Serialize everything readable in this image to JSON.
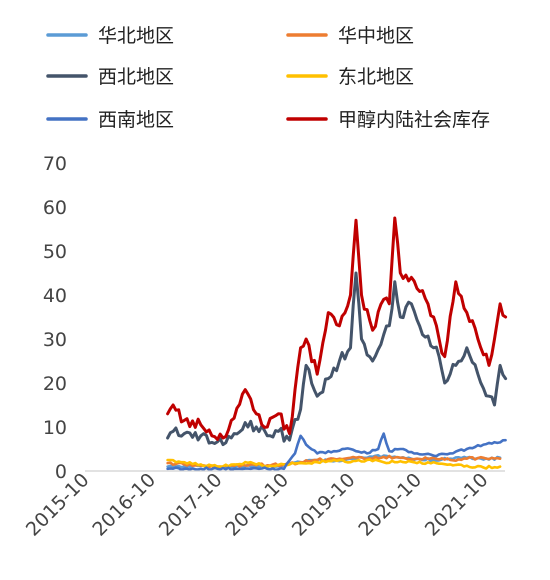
{
  "chart_data": {
    "type": "line",
    "x_ticks": [
      "2015-10",
      "2016-10",
      "2017-10",
      "2018-10",
      "2019-10",
      "2020-10",
      "2021-10"
    ],
    "y_ticks": [
      "0",
      "10",
      "20",
      "30",
      "40",
      "50",
      "60",
      "70"
    ],
    "ylim": [
      0,
      70
    ],
    "grid": false,
    "legend_position": "top",
    "series": [
      {
        "name": "华北地区",
        "color": "#5b9bd5",
        "points": [
          [
            "2016-12",
            1.0
          ],
          [
            "2017-03",
            1.0
          ],
          [
            "2017-06",
            1.2
          ],
          [
            "2017-09",
            0.8
          ],
          [
            "2017-12",
            1.0
          ],
          [
            "2018-03",
            1.1
          ],
          [
            "2018-06",
            1.0
          ],
          [
            "2018-09",
            1.3
          ],
          [
            "2018-12",
            2.0
          ],
          [
            "2019-03",
            2.5
          ],
          [
            "2019-06",
            2.2
          ],
          [
            "2019-09",
            2.8
          ],
          [
            "2019-12",
            3.0
          ],
          [
            "2020-03",
            3.5
          ],
          [
            "2020-06",
            3.0
          ],
          [
            "2020-09",
            2.8
          ],
          [
            "2020-12",
            2.5
          ],
          [
            "2021-03",
            2.8
          ],
          [
            "2021-06",
            3.0
          ],
          [
            "2021-09",
            2.6
          ],
          [
            "2021-12",
            3.0
          ]
        ]
      },
      {
        "name": "华中地区",
        "color": "#ed7d31",
        "points": [
          [
            "2016-12",
            1.8
          ],
          [
            "2017-03",
            1.5
          ],
          [
            "2017-06",
            1.2
          ],
          [
            "2017-09",
            1.0
          ],
          [
            "2017-12",
            1.2
          ],
          [
            "2018-03",
            1.5
          ],
          [
            "2018-06",
            1.3
          ],
          [
            "2018-09",
            1.5
          ],
          [
            "2018-12",
            2.0
          ],
          [
            "2019-03",
            2.5
          ],
          [
            "2019-06",
            2.8
          ],
          [
            "2019-09",
            3.0
          ],
          [
            "2019-12",
            2.8
          ],
          [
            "2020-03",
            3.2
          ],
          [
            "2020-06",
            3.0
          ],
          [
            "2020-09",
            2.8
          ],
          [
            "2020-12",
            3.0
          ],
          [
            "2021-03",
            2.5
          ],
          [
            "2021-06",
            2.8
          ],
          [
            "2021-09",
            3.0
          ],
          [
            "2021-12",
            2.8
          ]
        ]
      },
      {
        "name": "西北地区",
        "color": "#44546a",
        "points": [
          [
            "2016-12",
            7.5
          ],
          [
            "2017-01",
            9.0
          ],
          [
            "2017-03",
            8.5
          ],
          [
            "2017-06",
            8.0
          ],
          [
            "2017-08",
            6.5
          ],
          [
            "2017-10",
            6.0
          ],
          [
            "2017-12",
            8.5
          ],
          [
            "2018-02",
            11.0
          ],
          [
            "2018-04",
            10.0
          ],
          [
            "2018-06",
            8.0
          ],
          [
            "2018-08",
            9.0
          ],
          [
            "2018-10",
            7.0
          ],
          [
            "2018-12",
            14.0
          ],
          [
            "2019-01",
            24.0
          ],
          [
            "2019-03",
            17.0
          ],
          [
            "2019-05",
            21.0
          ],
          [
            "2019-07",
            25.0
          ],
          [
            "2019-09",
            28.0
          ],
          [
            "2019-10",
            45.0
          ],
          [
            "2019-11",
            30.0
          ],
          [
            "2020-01",
            25.0
          ],
          [
            "2020-03",
            31.0
          ],
          [
            "2020-04",
            33.0
          ],
          [
            "2020-05",
            43.0
          ],
          [
            "2020-06",
            35.0
          ],
          [
            "2020-08",
            38.0
          ],
          [
            "2020-10",
            31.0
          ],
          [
            "2020-12",
            28.0
          ],
          [
            "2021-01",
            26.0
          ],
          [
            "2021-02",
            20.0
          ],
          [
            "2021-04",
            24.0
          ],
          [
            "2021-06",
            28.0
          ],
          [
            "2021-08",
            22.0
          ],
          [
            "2021-10",
            17.0
          ],
          [
            "2021-11",
            15.0
          ],
          [
            "2021-12",
            24.0
          ],
          [
            "2022-01",
            21.0
          ]
        ]
      },
      {
        "name": "东北地区",
        "color": "#ffc000",
        "points": [
          [
            "2016-12",
            2.5
          ],
          [
            "2017-03",
            2.0
          ],
          [
            "2017-06",
            1.5
          ],
          [
            "2017-09",
            1.0
          ],
          [
            "2017-12",
            1.5
          ],
          [
            "2018-03",
            2.0
          ],
          [
            "2018-06",
            1.0
          ],
          [
            "2018-09",
            1.5
          ],
          [
            "2018-12",
            1.8
          ],
          [
            "2019-03",
            2.0
          ],
          [
            "2019-06",
            2.5
          ],
          [
            "2019-09",
            2.0
          ],
          [
            "2019-12",
            2.5
          ],
          [
            "2020-03",
            2.0
          ],
          [
            "2020-06",
            2.2
          ],
          [
            "2020-09",
            1.8
          ],
          [
            "2020-12",
            2.0
          ],
          [
            "2021-03",
            1.5
          ],
          [
            "2021-06",
            1.2
          ],
          [
            "2021-09",
            0.8
          ],
          [
            "2021-12",
            1.0
          ]
        ]
      },
      {
        "name": "西南地区",
        "color": "#4472c4",
        "points": [
          [
            "2016-12",
            0.5
          ],
          [
            "2017-03",
            0.5
          ],
          [
            "2017-06",
            0.5
          ],
          [
            "2017-09",
            0.5
          ],
          [
            "2017-12",
            0.5
          ],
          [
            "2018-03",
            0.5
          ],
          [
            "2018-06",
            0.5
          ],
          [
            "2018-09",
            0.5
          ],
          [
            "2018-11",
            4.0
          ],
          [
            "2018-12",
            8.0
          ],
          [
            "2019-01",
            6.0
          ],
          [
            "2019-03",
            4.0
          ],
          [
            "2019-06",
            4.5
          ],
          [
            "2019-09",
            5.0
          ],
          [
            "2019-12",
            4.0
          ],
          [
            "2020-02",
            5.0
          ],
          [
            "2020-03",
            8.5
          ],
          [
            "2020-04",
            4.5
          ],
          [
            "2020-06",
            5.0
          ],
          [
            "2020-09",
            4.0
          ],
          [
            "2020-12",
            3.5
          ],
          [
            "2021-03",
            4.0
          ],
          [
            "2021-06",
            5.0
          ],
          [
            "2021-09",
            6.0
          ],
          [
            "2021-12",
            6.5
          ],
          [
            "2022-01",
            7.0
          ]
        ]
      },
      {
        "name": "甲醇内陆社会库存",
        "color": "#c00000",
        "points": [
          [
            "2016-12",
            13.0
          ],
          [
            "2017-01",
            15.0
          ],
          [
            "2017-03",
            11.5
          ],
          [
            "2017-06",
            10.5
          ],
          [
            "2017-08",
            8.0
          ],
          [
            "2017-10",
            7.5
          ],
          [
            "2017-12",
            12.0
          ],
          [
            "2018-02",
            18.5
          ],
          [
            "2018-04",
            13.0
          ],
          [
            "2018-06",
            10.0
          ],
          [
            "2018-08",
            13.0
          ],
          [
            "2018-10",
            8.5
          ],
          [
            "2018-12",
            28.0
          ],
          [
            "2019-01",
            30.0
          ],
          [
            "2019-03",
            22.0
          ],
          [
            "2019-05",
            36.0
          ],
          [
            "2019-07",
            33.0
          ],
          [
            "2019-09",
            40.0
          ],
          [
            "2019-10",
            57.0
          ],
          [
            "2019-11",
            40.0
          ],
          [
            "2020-01",
            32.0
          ],
          [
            "2020-03",
            39.0
          ],
          [
            "2020-04",
            38.0
          ],
          [
            "2020-05",
            57.5
          ],
          [
            "2020-06",
            45.0
          ],
          [
            "2020-08",
            44.0
          ],
          [
            "2020-10",
            41.0
          ],
          [
            "2020-12",
            35.0
          ],
          [
            "2021-01",
            30.0
          ],
          [
            "2021-02",
            26.0
          ],
          [
            "2021-04",
            43.0
          ],
          [
            "2021-06",
            36.0
          ],
          [
            "2021-08",
            30.0
          ],
          [
            "2021-10",
            24.0
          ],
          [
            "2021-11",
            30.0
          ],
          [
            "2021-12",
            38.0
          ],
          [
            "2022-01",
            35.0
          ]
        ]
      }
    ]
  }
}
